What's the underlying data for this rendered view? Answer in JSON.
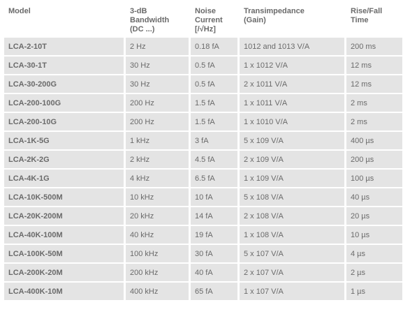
{
  "table": {
    "headers": [
      [
        "Model"
      ],
      [
        "3-dB",
        "Bandwidth",
        "(DC ...)"
      ],
      [
        "Noise",
        "Current",
        "[/√Hz]"
      ],
      [
        "Transimpedance",
        "(Gain)"
      ],
      [
        "Rise/Fall",
        "Time"
      ]
    ],
    "rows": [
      {
        "model": "LCA-2-10T",
        "bandwidth": "2 Hz",
        "noise": "0.18 fA",
        "gain": "1012 and 1013 V/A",
        "rise": "200 ms"
      },
      {
        "model": "LCA-30-1T",
        "bandwidth": "30 Hz",
        "noise": "0.5 fA",
        "gain": "1 x 1012 V/A",
        "rise": "12 ms"
      },
      {
        "model": "LCA-30-200G",
        "bandwidth": "30 Hz",
        "noise": "0.5 fA",
        "gain": "2 x 1011 V/A",
        "rise": "12 ms"
      },
      {
        "model": "LCA-200-100G",
        "bandwidth": "200 Hz",
        "noise": "1.5 fA",
        "gain": "1 x 1011 V/A",
        "rise": "2 ms"
      },
      {
        "model": "LCA-200-10G",
        "bandwidth": "200 Hz",
        "noise": "1.5 fA",
        "gain": "1 x 1010 V/A",
        "rise": "2 ms"
      },
      {
        "model": "LCA-1K-5G",
        "bandwidth": "1 kHz",
        "noise": "3 fA",
        "gain": "5 x 109 V/A",
        "rise": "400 µs"
      },
      {
        "model": "LCA-2K-2G",
        "bandwidth": "2 kHz",
        "noise": "4.5 fA",
        "gain": "2 x 109 V/A",
        "rise": "200 µs"
      },
      {
        "model": "LCA-4K-1G",
        "bandwidth": "4 kHz",
        "noise": "6.5 fA",
        "gain": "1 x 109 V/A",
        "rise": "100 µs"
      },
      {
        "model": "LCA-10K-500M",
        "bandwidth": "10 kHz",
        "noise": "10 fA",
        "gain": "5 x 108 V/A",
        "rise": "40 µs"
      },
      {
        "model": "LCA-20K-200M",
        "bandwidth": "20 kHz",
        "noise": "14 fA",
        "gain": "2 x 108 V/A",
        "rise": "20 µs"
      },
      {
        "model": "LCA-40K-100M",
        "bandwidth": "40 kHz",
        "noise": "19 fA",
        "gain": "1 x 108 V/A",
        "rise": "10 µs"
      },
      {
        "model": "LCA-100K-50M",
        "bandwidth": "100 kHz",
        "noise": "30 fA",
        "gain": "5 x 107 V/A",
        "rise": "4 µs"
      },
      {
        "model": "LCA-200K-20M",
        "bandwidth": "200 kHz",
        "noise": "40 fA",
        "gain": "2 x 107 V/A",
        "rise": "2 µs"
      },
      {
        "model": "LCA-400K-10M",
        "bandwidth": "400 kHz",
        "noise": "65 fA",
        "gain": "1 x 107 V/A",
        "rise": "1 µs"
      }
    ],
    "colors": {
      "shade": "#e4e4e4",
      "text": "#6a6a6a"
    }
  }
}
